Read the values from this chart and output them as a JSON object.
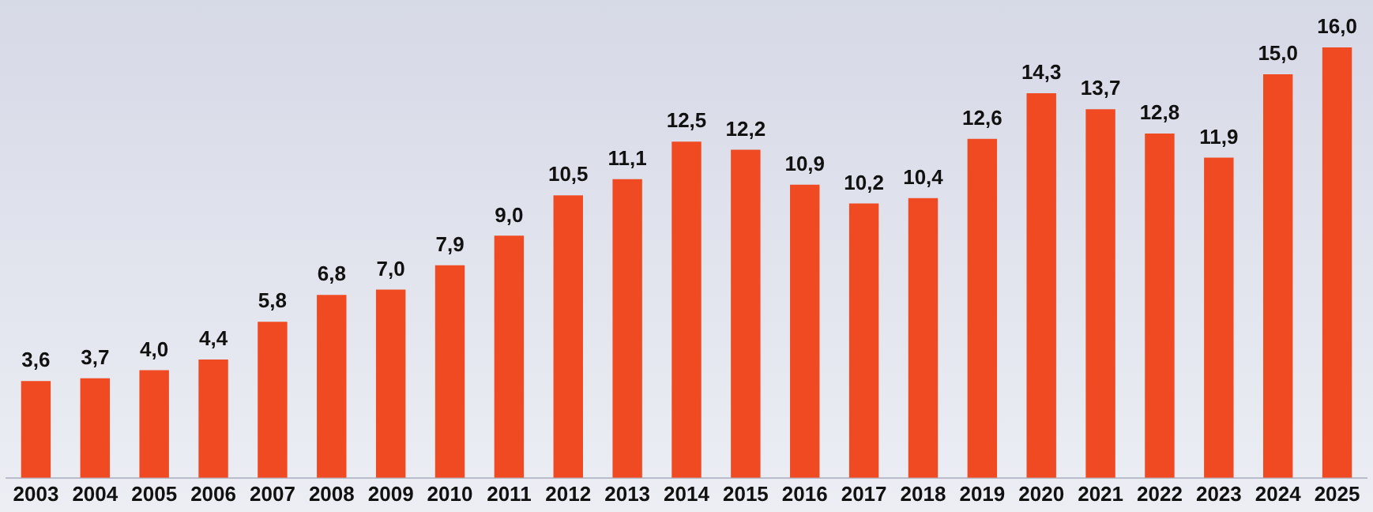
{
  "chart_data": {
    "type": "bar",
    "categories": [
      "2003",
      "2004",
      "2005",
      "2006",
      "2007",
      "2008",
      "2009",
      "2010",
      "2011",
      "2012",
      "2013",
      "2014",
      "2015",
      "2016",
      "2017",
      "2018",
      "2019",
      "2020",
      "2021",
      "2022",
      "2023",
      "2024",
      "2025"
    ],
    "values": [
      3.6,
      3.7,
      4.0,
      4.4,
      5.8,
      6.8,
      7.0,
      7.9,
      9.0,
      10.5,
      11.1,
      12.5,
      12.2,
      10.9,
      10.2,
      10.4,
      12.6,
      14.3,
      13.7,
      12.8,
      11.9,
      15.0,
      16.0
    ],
    "value_labels": [
      "3,6",
      "3,7",
      "4,0",
      "4,4",
      "5,8",
      "6,8",
      "7,0",
      "7,9",
      "9,0",
      "10,5",
      "11,1",
      "12,5",
      "12,2",
      "10,9",
      "10,2",
      "10,4",
      "12,6",
      "14,3",
      "13,7",
      "12,8",
      "11,9",
      "15,0",
      "16,0"
    ],
    "color": "#f04a23",
    "grid": false,
    "legend": false
  }
}
